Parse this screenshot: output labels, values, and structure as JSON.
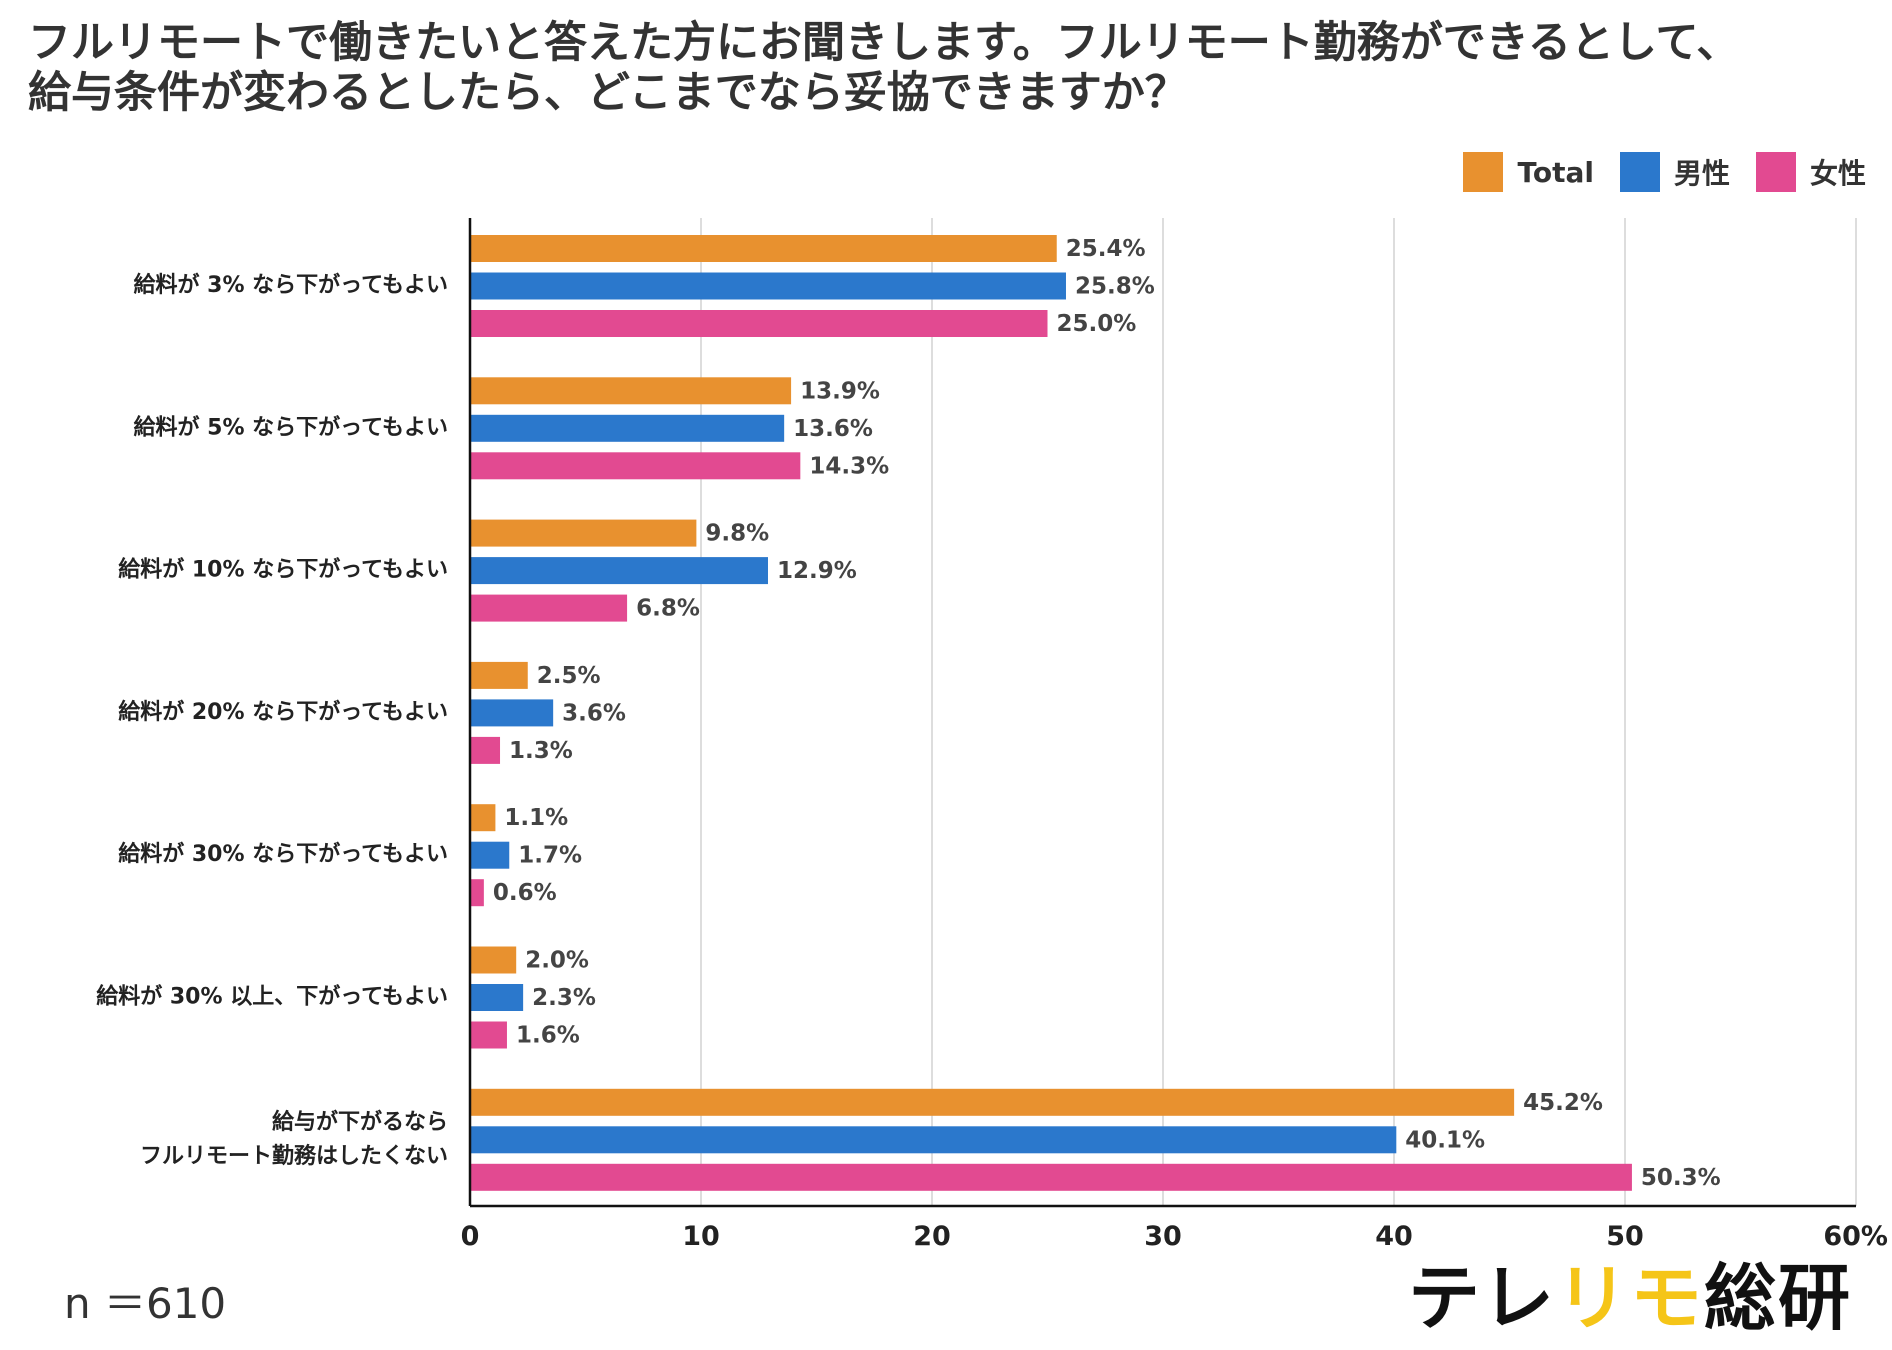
{
  "title_lines": [
    "フルリモートで働きたいと答えた方にお聞きします。フルリモート勤務ができるとして、",
    "給与条件が変わるとしたら、どこまでなら妥協できますか？"
  ],
  "sample": "n ＝610",
  "logo": {
    "part1": "テレ",
    "part2": "リモ",
    "part3": "総研"
  },
  "colors": {
    "total": "#E8912F",
    "male": "#2B78CC",
    "female": "#E24A91",
    "axis": "#111111",
    "grid": "#DDDDDD"
  },
  "chart_data": {
    "type": "bar",
    "orientation": "horizontal",
    "categories": [
      [
        "給料が 3% なら下がってもよい"
      ],
      [
        "給料が 5% なら下がってもよい"
      ],
      [
        "給料が 10% なら下がってもよい"
      ],
      [
        "給料が 20% なら下がってもよい"
      ],
      [
        "給料が 30% なら下がってもよい"
      ],
      [
        "給料が 30% 以上、下がってもよい"
      ],
      [
        "給与が下がるなら",
        "フルリモート勤務はしたくない"
      ]
    ],
    "series": [
      {
        "name": "Total",
        "key": "total",
        "values": [
          25.4,
          13.9,
          9.8,
          2.5,
          1.1,
          2.0,
          45.2
        ],
        "labels": [
          "25.4%",
          "13.9%",
          "9.8%",
          "2.5%",
          "1.1%",
          "2.0%",
          "45.2%"
        ]
      },
      {
        "name": "男性",
        "key": "male",
        "values": [
          25.8,
          13.6,
          12.9,
          3.6,
          1.7,
          2.3,
          40.1
        ],
        "labels": [
          "25.8%",
          "13.6%",
          "12.9%",
          "3.6%",
          "1.7%",
          "2.3%",
          "40.1%"
        ]
      },
      {
        "name": "女性",
        "key": "female",
        "values": [
          25.0,
          14.3,
          6.8,
          1.3,
          0.6,
          1.6,
          50.3
        ],
        "labels": [
          "25.0%",
          "14.3%",
          "6.8%",
          "1.3%",
          "0.6%",
          "1.6%",
          "50.3%"
        ]
      }
    ],
    "xlim": [
      0,
      60
    ],
    "xticks": [
      0,
      10,
      20,
      30,
      40,
      50,
      60
    ],
    "xtick_labels": [
      "0",
      "10",
      "20",
      "30",
      "40",
      "50",
      "60%"
    ],
    "grid": true,
    "legend": "top-right"
  }
}
